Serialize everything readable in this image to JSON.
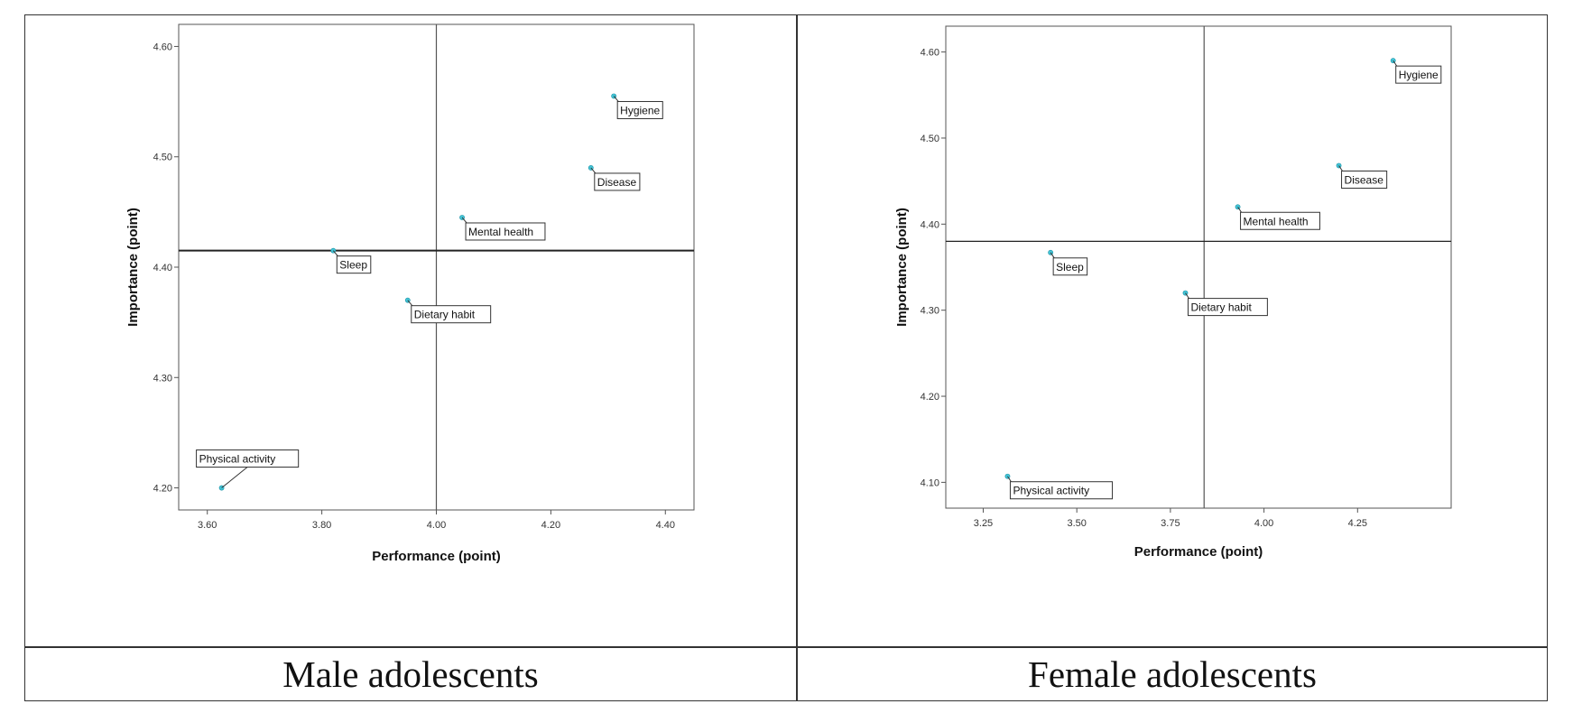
{
  "panels": [
    {
      "caption": "Male adolescents"
    },
    {
      "caption": "Female adolescents"
    }
  ],
  "chart_data": [
    {
      "type": "scatter",
      "title": "",
      "caption": "Male adolescents",
      "xlabel": "Performance (point)",
      "ylabel": "Importance (point)",
      "xlim": [
        3.55,
        4.45
      ],
      "ylim": [
        4.18,
        4.62
      ],
      "xticks": [
        "3.60",
        "3.80",
        "4.00",
        "4.20",
        "4.40"
      ],
      "yticks": [
        "4.20",
        "4.30",
        "4.40",
        "4.50",
        "4.60"
      ],
      "reference_lines": {
        "x": 4.0,
        "y": 4.415
      },
      "grid": false,
      "point_color": "#43c6d8",
      "points": [
        {
          "label": "Hygiene",
          "x": 4.31,
          "y": 4.555
        },
        {
          "label": "Disease",
          "x": 4.27,
          "y": 4.49
        },
        {
          "label": "Mental health",
          "x": 4.045,
          "y": 4.445
        },
        {
          "label": "Sleep",
          "x": 3.82,
          "y": 4.415
        },
        {
          "label": "Dietary habit",
          "x": 3.95,
          "y": 4.37
        },
        {
          "label": "Physical activity",
          "x": 3.625,
          "y": 4.2
        }
      ]
    },
    {
      "type": "scatter",
      "title": "",
      "caption": "Female adolescents",
      "xlabel": "Performance (point)",
      "ylabel": "Importance (point)",
      "xlim": [
        3.15,
        4.5
      ],
      "ylim": [
        4.07,
        4.63
      ],
      "xticks": [
        "3.25",
        "3.50",
        "3.75",
        "4.00",
        "4.25"
      ],
      "yticks": [
        "4.10",
        "4.20",
        "4.30",
        "4.40",
        "4.50",
        "4.60"
      ],
      "reference_lines": {
        "x": 3.84,
        "y": 4.38
      },
      "grid": false,
      "point_color": "#43c6d8",
      "points": [
        {
          "label": "Hygiene",
          "x": 4.345,
          "y": 4.59
        },
        {
          "label": "Disease",
          "x": 4.2,
          "y": 4.468
        },
        {
          "label": "Mental health",
          "x": 3.93,
          "y": 4.42
        },
        {
          "label": "Sleep",
          "x": 3.43,
          "y": 4.367
        },
        {
          "label": "Dietary habit",
          "x": 3.79,
          "y": 4.32
        },
        {
          "label": "Physical activity",
          "x": 3.315,
          "y": 4.107
        }
      ]
    }
  ]
}
